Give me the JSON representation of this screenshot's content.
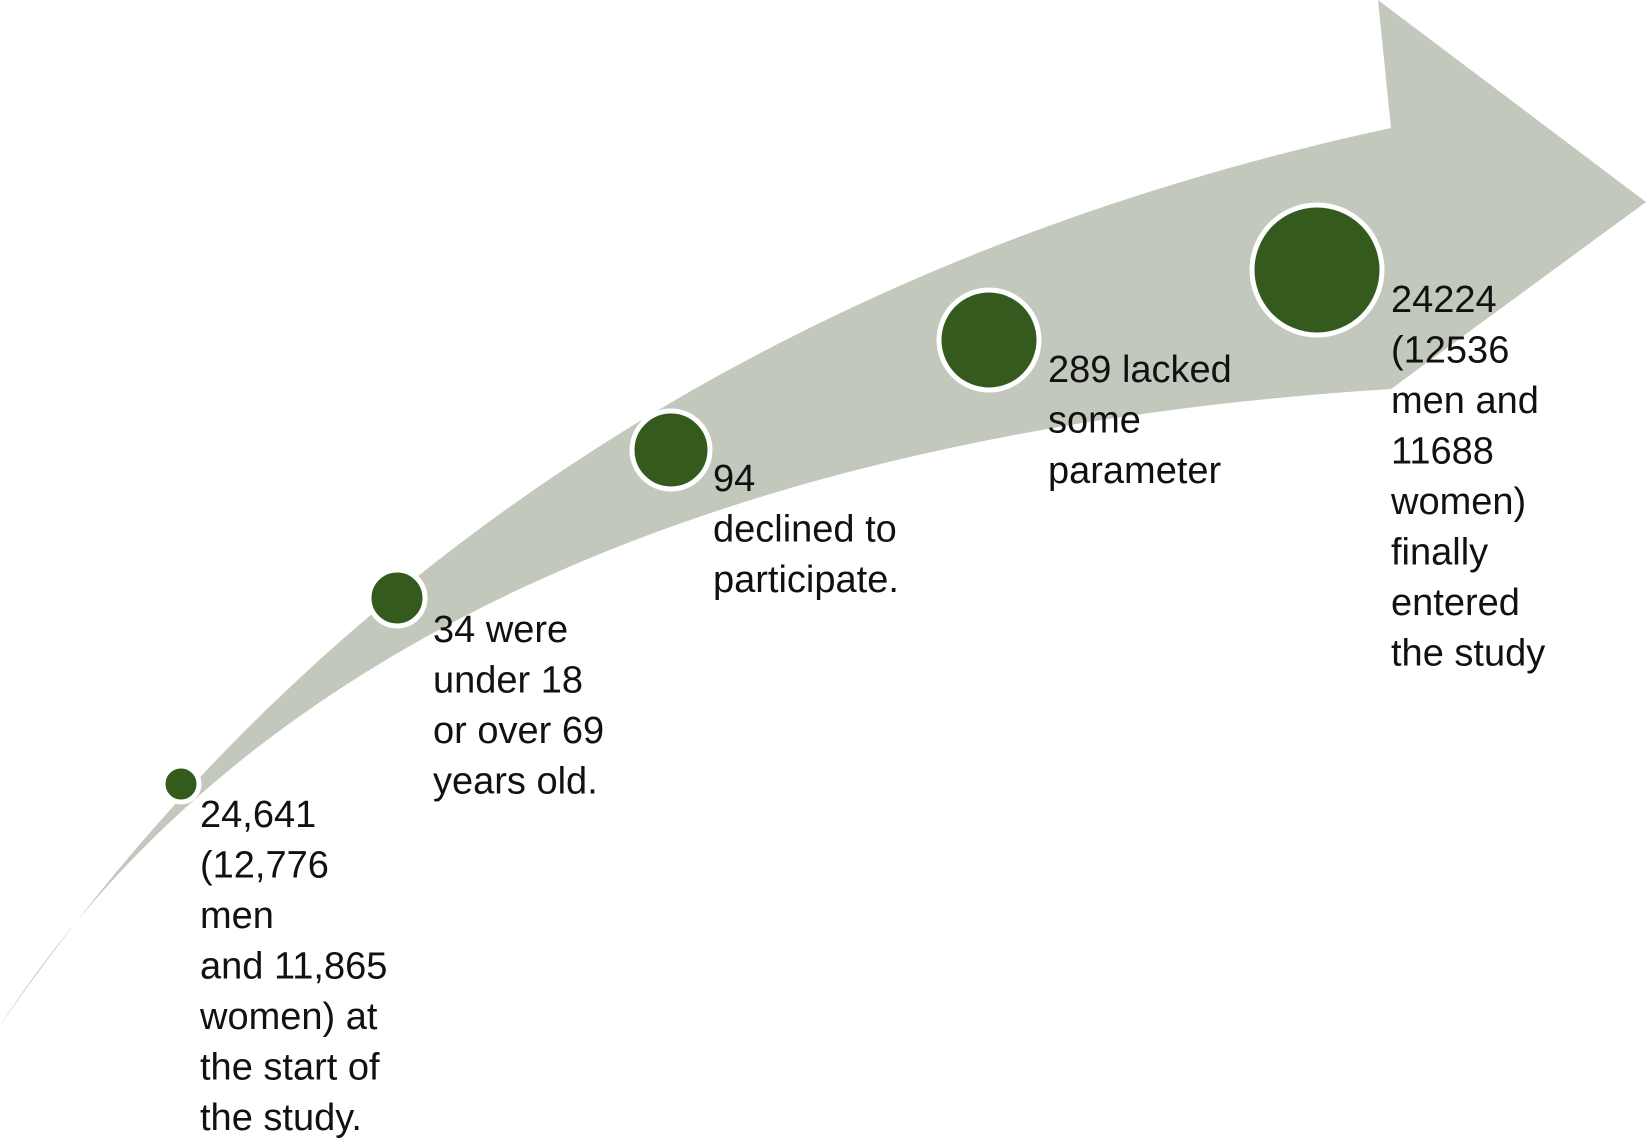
{
  "nodes": [
    {
      "label": [
        "24,641",
        "(12,776",
        "men",
        "and 11,865",
        "women) at",
        "the start of",
        "the study."
      ]
    },
    {
      "label": [
        "34 were",
        "under 18",
        "or over 69",
        "years old."
      ]
    },
    {
      "label": [
        "94",
        "declined to",
        "participate."
      ]
    },
    {
      "label": [
        "289 lacked",
        "some",
        "parameter"
      ]
    },
    {
      "label": [
        "24224",
        "(12536",
        "men and",
        "11688",
        "women)",
        "finally",
        "entered",
        "the study"
      ]
    }
  ]
}
